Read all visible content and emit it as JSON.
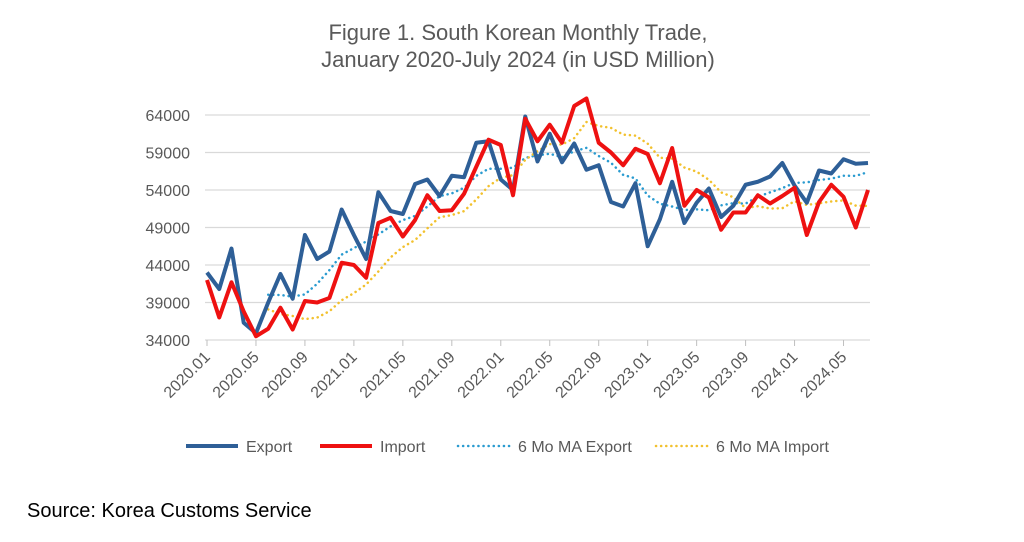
{
  "chart_data": {
    "type": "line",
    "title_line1": "Figure 1. South Korean Monthly Trade,",
    "title_line2": "January 2020-July 2024 (in USD Million)",
    "xlabel": "",
    "ylabel": "",
    "ylim": [
      34000,
      64000
    ],
    "yticks": [
      34000,
      39000,
      44000,
      49000,
      54000,
      59000,
      64000
    ],
    "x_start": "2020.01",
    "xtick_labels": [
      "2020.01",
      "2020.05",
      "2020.09",
      "2021.01",
      "2021.05",
      "2021.09",
      "2022.01",
      "2022.05",
      "2022.09",
      "2023.01",
      "2023.05",
      "2023.09",
      "2024.01",
      "2024.05"
    ],
    "grid": true,
    "legend_position": "bottom",
    "series": [
      {
        "name": "Export",
        "color": "#2E5F97",
        "style": "solid",
        "values": [
          43000,
          40800,
          46200,
          36300,
          34900,
          39000,
          42800,
          39500,
          48000,
          44800,
          45800,
          51400,
          48000,
          44800,
          53700,
          51200,
          50800,
          54800,
          55400,
          53200,
          55900,
          55700,
          60300,
          60500,
          55400,
          54000,
          63800,
          57800,
          61500,
          57700,
          60200,
          56700,
          57300,
          52400,
          51800,
          54900,
          46500,
          50100,
          55100,
          49600,
          52300,
          54200,
          50400,
          51900,
          54700,
          55100,
          55800,
          57600,
          54600,
          52300,
          56600,
          56200,
          58100,
          57500,
          57600
        ]
      },
      {
        "name": "Import",
        "color": "#EE1111",
        "style": "solid",
        "values": [
          42000,
          37000,
          41700,
          37800,
          34500,
          35500,
          38300,
          35400,
          39200,
          39000,
          39600,
          44300,
          44000,
          42300,
          49600,
          50300,
          47800,
          50000,
          53300,
          51200,
          51300,
          53500,
          57100,
          60700,
          60000,
          53300,
          63500,
          60500,
          62700,
          60300,
          65200,
          66200,
          60300,
          59000,
          57300,
          59500,
          58800,
          54900,
          59600,
          51900,
          54000,
          53000,
          48700,
          51000,
          51000,
          53300,
          52200,
          53200,
          54300,
          48000,
          52400,
          54700,
          53100,
          49000,
          54000
        ]
      },
      {
        "name": "6 Mo MA Export",
        "color": "#2A9BD0",
        "style": "dotted",
        "moving_average_of": "Export",
        "window": 6
      },
      {
        "name": "6 Mo MA Import",
        "color": "#F2C12E",
        "style": "dotted",
        "moving_average_of": "Import",
        "window": 6
      }
    ]
  },
  "source": "Source: Korea Customs Service"
}
